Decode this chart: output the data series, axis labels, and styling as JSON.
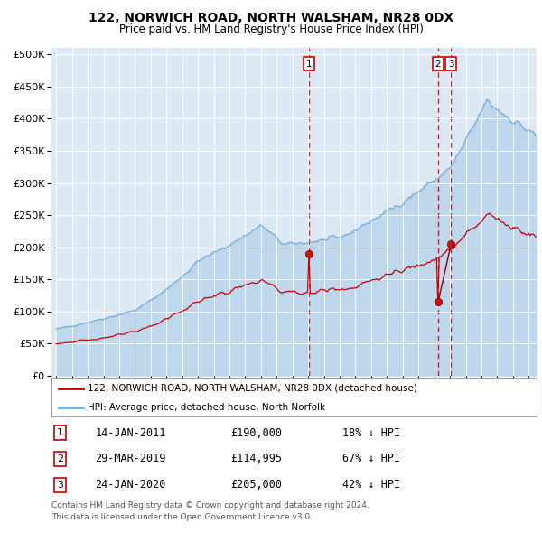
{
  "title": "122, NORWICH ROAD, NORTH WALSHAM, NR28 0DX",
  "subtitle": "Price paid vs. HM Land Registry's House Price Index (HPI)",
  "bg_color": "#dce9f5",
  "hpi_color": "#7aaedb",
  "price_color": "#cc0000",
  "vline_color": "#cc0000",
  "ylim": [
    0,
    510000
  ],
  "yticks": [
    0,
    50000,
    100000,
    150000,
    200000,
    250000,
    300000,
    350000,
    400000,
    450000,
    500000
  ],
  "ytick_labels": [
    "£0",
    "£50K",
    "£100K",
    "£150K",
    "£200K",
    "£250K",
    "£300K",
    "£350K",
    "£400K",
    "£450K",
    "£500K"
  ],
  "xlim_start": 1994.7,
  "xlim_end": 2025.5,
  "transactions": [
    {
      "label": "1",
      "date_num": 2011.04,
      "price": 190000,
      "desc": "14-JAN-2011",
      "price_str": "£190,000",
      "pct": "18% ↓ HPI"
    },
    {
      "label": "2",
      "date_num": 2019.25,
      "price": 114995,
      "desc": "29-MAR-2019",
      "price_str": "£114,995",
      "pct": "67% ↓ HPI"
    },
    {
      "label": "3",
      "date_num": 2020.07,
      "price": 205000,
      "desc": "24-JAN-2020",
      "price_str": "£205,000",
      "pct": "42% ↓ HPI"
    }
  ],
  "legend_entry1": "122, NORWICH ROAD, NORTH WALSHAM, NR28 0DX (detached house)",
  "legend_entry2": "HPI: Average price, detached house, North Norfolk",
  "footer1": "Contains HM Land Registry data © Crown copyright and database right 2024.",
  "footer2": "This data is licensed under the Open Government Licence v3.0."
}
